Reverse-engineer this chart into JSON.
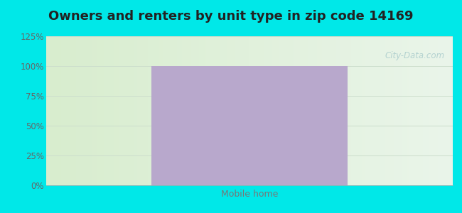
{
  "title": "Owners and renters by unit type in zip code 14169",
  "categories": [
    "Mobile home"
  ],
  "values": [
    100
  ],
  "bar_color": "#b8a8cc",
  "ylim": [
    0,
    125
  ],
  "yticks": [
    0,
    25,
    50,
    75,
    100,
    125
  ],
  "ytick_labels": [
    "0%",
    "25%",
    "50%",
    "75%",
    "100%",
    "125%"
  ],
  "outer_bg_color": "#00e8e8",
  "title_fontsize": 13,
  "title_color": "#222222",
  "tick_label_color": "#666666",
  "xlabel_color": "#777777",
  "watermark_text": "City-Data.com",
  "watermark_color": "#aacccc",
  "gridline_color": "#ccddcc",
  "bg_left_color": "#d8edce",
  "bg_right_color": "#eaf5ea"
}
